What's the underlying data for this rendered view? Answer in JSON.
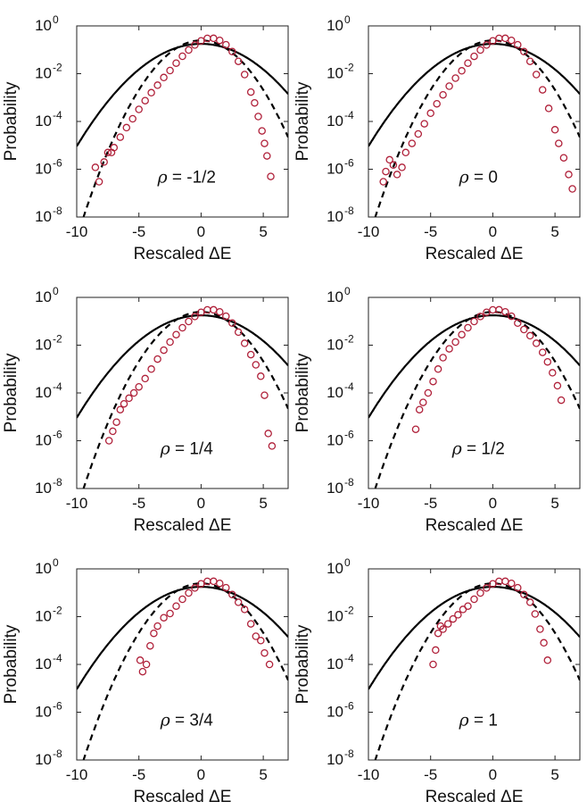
{
  "figure": {
    "colors": {
      "curve": "#000000",
      "markers": "#b0213a",
      "frame": "#222222"
    }
  },
  "chart_data": [
    {
      "type": "scatter",
      "annotation": {
        "symbol": "ρ",
        "text": "= -1/2"
      },
      "xlabel": "Rescaled ΔE",
      "ylabel": "Probability",
      "xlim": [
        -10,
        7
      ],
      "ylim_log10": [
        -8,
        0
      ],
      "yscale": "log",
      "xticks": [
        "-10",
        "-5",
        "0",
        "5"
      ],
      "yticks": [
        "10",
        "10",
        "10",
        "10",
        "10"
      ],
      "ytick_exponents": [
        "-8",
        "-6",
        "-4",
        "-2",
        "0"
      ],
      "series": [
        {
          "kind": "solid-curve",
          "mu": 0,
          "sigma": 2.25,
          "xrange": [
            -10,
            7
          ]
        },
        {
          "kind": "dashed-curve",
          "mu": 0,
          "sigma": 1.62,
          "xrange": [
            -10,
            7
          ]
        },
        {
          "kind": "markers",
          "x": [
            -8.5,
            -8.2,
            -7.8,
            -7.5,
            -7.2,
            -7.0,
            -6.5,
            -6.0,
            -5.5,
            -5.0,
            -4.5,
            -4.0,
            -3.5,
            -3.0,
            -2.5,
            -2.0,
            -1.5,
            -1.0,
            -0.5,
            0.0,
            0.5,
            1.0,
            1.5,
            2.0,
            2.5,
            3.0,
            3.5,
            4.0,
            4.3,
            4.6,
            4.9,
            5.1,
            5.3,
            5.6
          ],
          "y": [
            1.2e-06,
            3e-07,
            2e-06,
            5e-06,
            5e-06,
            8e-06,
            2.2e-05,
            5.5e-05,
            0.00013,
            0.00032,
            0.00074,
            0.0016,
            0.0033,
            0.0069,
            0.0135,
            0.0277,
            0.0534,
            0.098,
            0.159,
            0.237,
            0.299,
            0.303,
            0.247,
            0.162,
            0.0837,
            0.0328,
            0.0092,
            0.0017,
            0.0006,
            0.00016,
            4e-05,
            1.2e-05,
            3.6e-06,
            5e-07
          ]
        }
      ]
    },
    {
      "type": "scatter",
      "annotation": {
        "symbol": "ρ",
        "text": "= 0"
      },
      "xlabel": "Rescaled ΔE",
      "ylabel": "Probability",
      "xlim": [
        -10,
        7
      ],
      "ylim_log10": [
        -8,
        0
      ],
      "yscale": "log",
      "xticks": [
        "-10",
        "-5",
        "0",
        "5"
      ],
      "yticks": [
        "10",
        "10",
        "10",
        "10",
        "10"
      ],
      "ytick_exponents": [
        "-8",
        "-6",
        "-4",
        "-2",
        "0"
      ],
      "series": [
        {
          "kind": "solid-curve",
          "mu": 0,
          "sigma": 2.25,
          "xrange": [
            -10,
            7
          ]
        },
        {
          "kind": "dashed-curve",
          "mu": 0,
          "sigma": 1.62,
          "xrange": [
            -10,
            7
          ]
        },
        {
          "kind": "markers",
          "x": [
            -8.8,
            -8.6,
            -8.3,
            -8.0,
            -7.7,
            -7.3,
            -7.0,
            -6.5,
            -6.0,
            -5.5,
            -5.0,
            -4.5,
            -4.0,
            -3.5,
            -3.0,
            -2.5,
            -2.0,
            -1.5,
            -1.0,
            -0.5,
            0.0,
            0.5,
            1.0,
            1.5,
            2.0,
            2.5,
            3.0,
            3.5,
            4.0,
            4.5,
            5.0,
            5.3,
            5.7,
            6.1,
            6.4
          ],
          "y": [
            3e-07,
            8e-07,
            2.5e-06,
            1.5e-06,
            6e-07,
            1.2e-06,
            5e-06,
            1.2e-05,
            3e-05,
            8e-05,
            0.00022,
            0.00055,
            0.0013,
            0.003,
            0.0065,
            0.0132,
            0.0275,
            0.053,
            0.098,
            0.159,
            0.237,
            0.299,
            0.303,
            0.247,
            0.162,
            0.0837,
            0.0328,
            0.0092,
            0.0021,
            0.00035,
            4.5e-05,
            1.2e-05,
            3e-06,
            6e-07,
            1.5e-07
          ]
        }
      ]
    },
    {
      "type": "scatter",
      "annotation": {
        "symbol": "ρ",
        "text": "= 1/4"
      },
      "xlabel": "Rescaled ΔE",
      "ylabel": "Probability",
      "xlim": [
        -10,
        7
      ],
      "ylim_log10": [
        -8,
        0
      ],
      "yscale": "log",
      "xticks": [
        "-10",
        "-5",
        "0",
        "5"
      ],
      "yticks": [
        "10",
        "10",
        "10",
        "10",
        "10"
      ],
      "ytick_exponents": [
        "-8",
        "-6",
        "-4",
        "-2",
        "0"
      ],
      "series": [
        {
          "kind": "solid-curve",
          "mu": 0,
          "sigma": 2.25,
          "xrange": [
            -10,
            7
          ]
        },
        {
          "kind": "dashed-curve",
          "mu": 0,
          "sigma": 1.62,
          "xrange": [
            -10,
            7
          ]
        },
        {
          "kind": "markers",
          "x": [
            -7.4,
            -7.1,
            -6.8,
            -6.5,
            -6.2,
            -5.8,
            -5.4,
            -5.0,
            -4.5,
            -4.0,
            -3.5,
            -3.0,
            -2.5,
            -2.0,
            -1.5,
            -1.0,
            -0.5,
            0.0,
            0.5,
            1.0,
            1.5,
            2.0,
            2.5,
            3.0,
            3.5,
            4.0,
            4.4,
            4.8,
            5.1,
            5.4,
            5.7
          ],
          "y": [
            1e-06,
            2.5e-06,
            6e-06,
            2e-05,
            3.5e-05,
            6e-05,
            0.0001,
            0.00018,
            0.0004,
            0.001,
            0.0026,
            0.0062,
            0.0135,
            0.0277,
            0.0534,
            0.098,
            0.159,
            0.237,
            0.299,
            0.303,
            0.247,
            0.162,
            0.0837,
            0.035,
            0.012,
            0.004,
            0.0015,
            0.0005,
            8e-05,
            2e-06,
            6e-07
          ]
        }
      ]
    },
    {
      "type": "scatter",
      "annotation": {
        "symbol": "ρ",
        "text": "= 1/2"
      },
      "xlabel": "Rescaled ΔE",
      "ylabel": "Probability",
      "xlim": [
        -10,
        7
      ],
      "ylim_log10": [
        -8,
        0
      ],
      "yscale": "log",
      "xticks": [
        "-10",
        "-5",
        "0",
        "5"
      ],
      "yticks": [
        "10",
        "10",
        "10",
        "10",
        "10"
      ],
      "ytick_exponents": [
        "-8",
        "-6",
        "-4",
        "-2",
        "0"
      ],
      "series": [
        {
          "kind": "solid-curve",
          "mu": 0,
          "sigma": 2.25,
          "xrange": [
            -10,
            7
          ]
        },
        {
          "kind": "dashed-curve",
          "mu": 0,
          "sigma": 1.62,
          "xrange": [
            -10,
            7
          ]
        },
        {
          "kind": "markers",
          "x": [
            -6.2,
            -5.9,
            -5.6,
            -5.2,
            -4.8,
            -4.4,
            -4.0,
            -3.5,
            -3.0,
            -2.5,
            -2.0,
            -1.5,
            -1.0,
            -0.5,
            0.0,
            0.5,
            1.0,
            1.5,
            2.0,
            2.5,
            3.0,
            3.5,
            4.0,
            4.4,
            4.8,
            5.2,
            5.5
          ],
          "y": [
            3e-06,
            2e-05,
            4e-05,
            0.0001,
            0.0003,
            0.001,
            0.003,
            0.007,
            0.0135,
            0.0277,
            0.0534,
            0.098,
            0.159,
            0.237,
            0.299,
            0.303,
            0.247,
            0.162,
            0.0837,
            0.045,
            0.025,
            0.012,
            0.005,
            0.002,
            0.0007,
            0.0002,
            5e-05
          ]
        }
      ]
    },
    {
      "type": "scatter",
      "annotation": {
        "symbol": "ρ",
        "text": "= 3/4"
      },
      "xlabel": "Rescaled ΔE",
      "ylabel": "Probability",
      "xlim": [
        -10,
        7
      ],
      "ylim_log10": [
        -8,
        0
      ],
      "yscale": "log",
      "xticks": [
        "-10",
        "-5",
        "0",
        "5"
      ],
      "yticks": [
        "10",
        "10",
        "10",
        "10",
        "10"
      ],
      "ytick_exponents": [
        "-8",
        "-6",
        "-4",
        "-2",
        "0"
      ],
      "series": [
        {
          "kind": "solid-curve",
          "mu": 0,
          "sigma": 2.25,
          "xrange": [
            -10,
            7
          ]
        },
        {
          "kind": "dashed-curve",
          "mu": 0,
          "sigma": 1.62,
          "xrange": [
            -10,
            7
          ]
        },
        {
          "kind": "markers",
          "x": [
            -4.9,
            -4.7,
            -4.4,
            -4.1,
            -3.8,
            -3.5,
            -3.0,
            -2.5,
            -2.0,
            -1.5,
            -1.0,
            -0.5,
            0.0,
            0.5,
            1.0,
            1.5,
            2.0,
            2.5,
            3.0,
            3.5,
            4.0,
            4.4,
            4.8,
            5.1,
            5.5
          ],
          "y": [
            0.00015,
            5e-05,
            0.0001,
            0.0006,
            0.002,
            0.004,
            0.009,
            0.0135,
            0.0277,
            0.0534,
            0.098,
            0.159,
            0.237,
            0.299,
            0.303,
            0.247,
            0.162,
            0.0837,
            0.04,
            0.02,
            0.005,
            0.0015,
            0.001,
            0.0003,
            0.0001
          ]
        }
      ]
    },
    {
      "type": "scatter",
      "annotation": {
        "symbol": "ρ",
        "text": "= 1"
      },
      "xlabel": "Rescaled ΔE",
      "ylabel": "Probability",
      "xlim": [
        -10,
        7
      ],
      "ylim_log10": [
        -8,
        0
      ],
      "yscale": "log",
      "xticks": [
        "-10",
        "-5",
        "0",
        "5"
      ],
      "yticks": [
        "10",
        "10",
        "10",
        "10",
        "10"
      ],
      "ytick_exponents": [
        "-8",
        "-6",
        "-4",
        "-2",
        "0"
      ],
      "series": [
        {
          "kind": "solid-curve",
          "mu": 0,
          "sigma": 2.25,
          "xrange": [
            -10,
            7
          ]
        },
        {
          "kind": "dashed-curve",
          "mu": 0,
          "sigma": 1.62,
          "xrange": [
            -10,
            7
          ]
        },
        {
          "kind": "markers",
          "x": [
            -4.8,
            -4.6,
            -4.4,
            -4.2,
            -4.0,
            -3.6,
            -3.2,
            -2.8,
            -2.4,
            -2.0,
            -1.5,
            -1.0,
            -0.5,
            0.0,
            0.5,
            1.0,
            1.5,
            2.0,
            2.5,
            3.0,
            3.4,
            3.8,
            4.1,
            4.4
          ],
          "y": [
            0.0001,
            0.0004,
            0.002,
            0.004,
            0.003,
            0.005,
            0.008,
            0.012,
            0.02,
            0.0277,
            0.0534,
            0.098,
            0.159,
            0.237,
            0.299,
            0.303,
            0.247,
            0.162,
            0.0837,
            0.04,
            0.013,
            0.003,
            0.0008,
            0.00015
          ]
        }
      ]
    }
  ]
}
